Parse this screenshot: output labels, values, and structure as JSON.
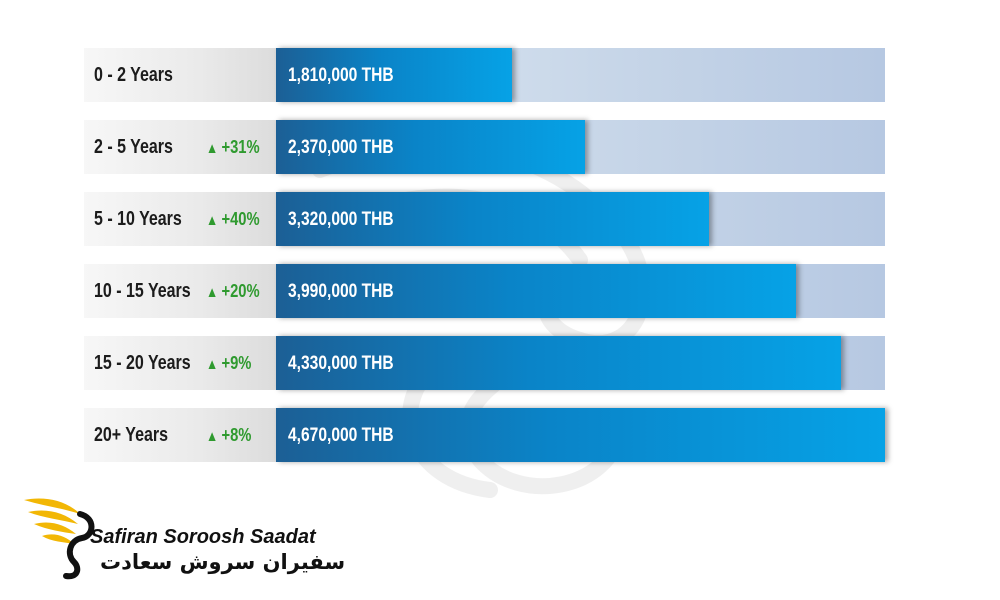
{
  "chart_data": {
    "type": "bar",
    "orientation": "horizontal",
    "unit": "THB",
    "categories": [
      "0 - 2 Years",
      "2 - 5 Years",
      "5 - 10 Years",
      "10 - 15 Years",
      "15 - 20 Years",
      "20+ Years"
    ],
    "values": [
      1810000,
      2370000,
      3320000,
      3990000,
      4330000,
      4670000
    ],
    "value_labels": [
      "1,810,000 THB",
      "2,370,000 THB",
      "3,320,000 THB",
      "3,990,000 THB",
      "4,330,000 THB",
      "4,670,000 THB"
    ],
    "growth_labels": [
      "",
      "+31%",
      "+40%",
      "+20%",
      "+9%",
      "+8%"
    ],
    "xlim": [
      0,
      4670000
    ],
    "title": "",
    "xlabel": "",
    "ylabel": "",
    "grid": false,
    "colors": {
      "bar_start": "#1c5f95",
      "bar_end": "#06a2e6",
      "track": "#c7d6e8",
      "label_bg": "#eaeaea",
      "growth": "#2f9a2f"
    }
  },
  "branding": {
    "name_en": "Safiran Soroosh Saadat",
    "name_fa": "سفیران سروش سعادت",
    "logo_icon": "golden-wing-icon",
    "logo_color": "#f2b705"
  }
}
